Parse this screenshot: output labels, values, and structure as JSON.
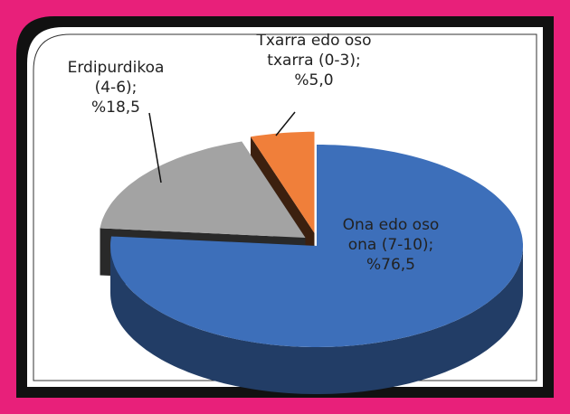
{
  "chart_data": {
    "type": "pie",
    "categories": [
      "Ona edo oso ona (7-10);",
      "Erdipurdikoa (4-6);",
      "Txarra edo oso txarra (0-3);"
    ],
    "values": [
      76.5,
      18.5,
      5.0
    ],
    "value_labels": [
      "%76,5",
      "%18,5",
      "%5,0"
    ],
    "colors": [
      "#3d6fba",
      "#a3a3a3",
      "#f07f3a"
    ]
  }
}
